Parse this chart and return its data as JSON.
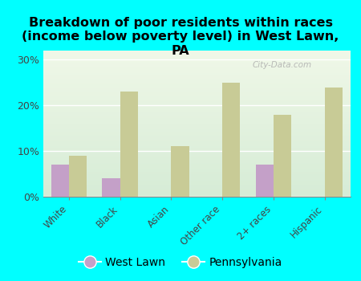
{
  "title": "Breakdown of poor residents within races\n(income below poverty level) in West Lawn,\nPA",
  "categories": [
    "White",
    "Black",
    "Asian",
    "Other race",
    "2+ races",
    "Hispanic"
  ],
  "west_lawn": [
    7.0,
    4.0,
    0.0,
    0.0,
    7.0,
    0.0
  ],
  "pennsylvania": [
    9.0,
    23.0,
    11.0,
    25.0,
    18.0,
    24.0
  ],
  "west_lawn_color": "#c4a0c8",
  "pennsylvania_color": "#c8cb96",
  "background_outer": "#00ffff",
  "bg_top": "#d6ecd6",
  "bg_bottom": "#f0f8e8",
  "yticks": [
    0,
    10,
    20,
    30
  ],
  "ylim": [
    0,
    32
  ],
  "bar_width": 0.35,
  "title_fontsize": 11.5,
  "watermark": "City-Data.com"
}
